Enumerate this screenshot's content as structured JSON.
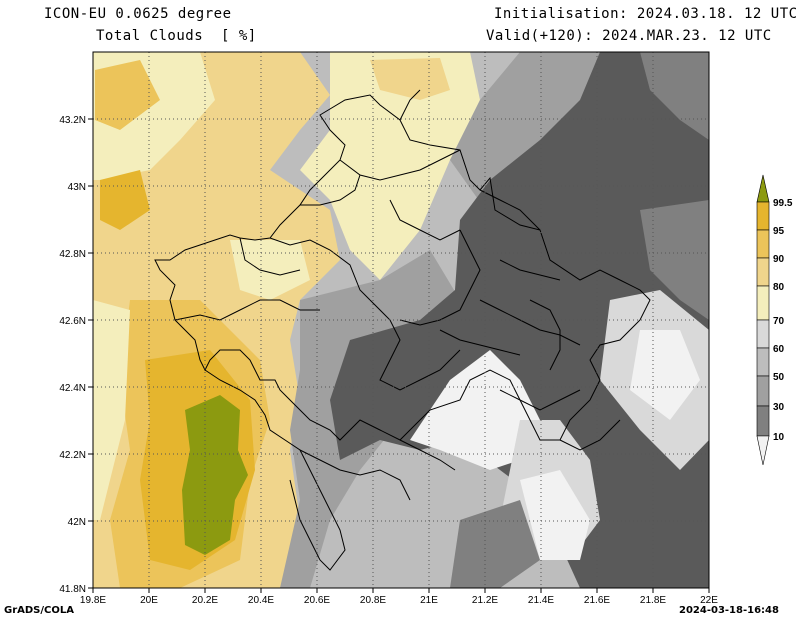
{
  "header": {
    "model": "ICON-EU 0.0625 degree",
    "field": "Total Clouds  [ %]",
    "initialisation": "Initialisation: 2024.03.18. 12 UTC",
    "valid": "Valid(+120): 2024.MAR.23. 12 UTC"
  },
  "axes": {
    "lon_labels": [
      "19.8E",
      "20E",
      "20.2E",
      "20.4E",
      "20.6E",
      "20.8E",
      "21E",
      "21.2E",
      "21.4E",
      "21.6E",
      "21.8E",
      "22E"
    ],
    "lat_labels": [
      "43.2N",
      "43N",
      "42.8N",
      "42.6N",
      "42.4N",
      "42.2N",
      "42N",
      "41.8N"
    ]
  },
  "colorbar": {
    "labels": [
      "99.5",
      "95",
      "90",
      "80",
      "70",
      "60",
      "50",
      "30",
      "10"
    ],
    "colors": [
      "#8c9a10",
      "#e5b52e",
      "#ecc45a",
      "#f0d58c",
      "#f4eebc",
      "#d9d9d9",
      "#bdbdbd",
      "#a0a0a0",
      "#808080",
      "#5a5a5a",
      "#f2f2f2"
    ]
  },
  "footer": {
    "left": "GrADS/COLA",
    "right": "2024-03-18-16:48"
  }
}
